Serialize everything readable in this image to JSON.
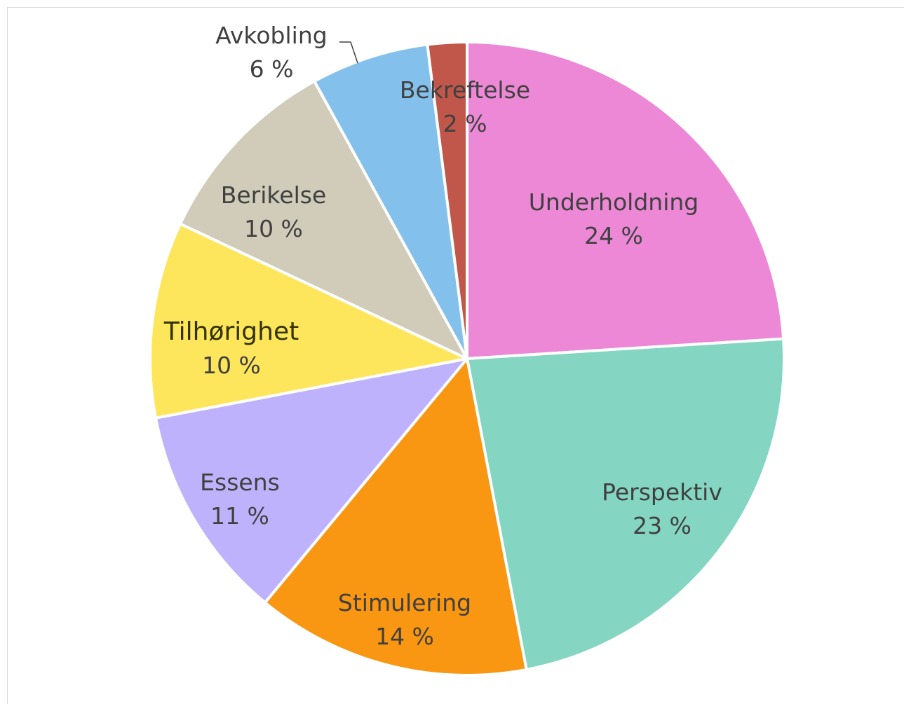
{
  "chart_data": {
    "type": "pie",
    "title": "",
    "start_angle_deg": 0,
    "direction": "clockwise",
    "slices": [
      {
        "label": "Underholdning",
        "value": 24,
        "value_label": "24 %",
        "color": "#EC88D6"
      },
      {
        "label": "Perspektiv",
        "value": 23,
        "value_label": "23 %",
        "color": "#84D6C3"
      },
      {
        "label": "Stimulering",
        "value": 14,
        "value_label": "14 %",
        "color": "#F99612"
      },
      {
        "label": "Essens",
        "value": 11,
        "value_label": "11 %",
        "color": "#BFB2FD"
      },
      {
        "label": "Tilhørighet",
        "value": 10,
        "value_label": "10 %",
        "color": "#FDE65B"
      },
      {
        "label": "Berikelse",
        "value": 10,
        "value_label": "10 %",
        "color": "#D1CCB9"
      },
      {
        "label": "Avkobling",
        "value": 6,
        "value_label": "6 %",
        "color": "#83C1EC"
      },
      {
        "label": "Bekreftelse",
        "value": 2,
        "value_label": "2 %",
        "color": "#C0574A"
      }
    ]
  }
}
